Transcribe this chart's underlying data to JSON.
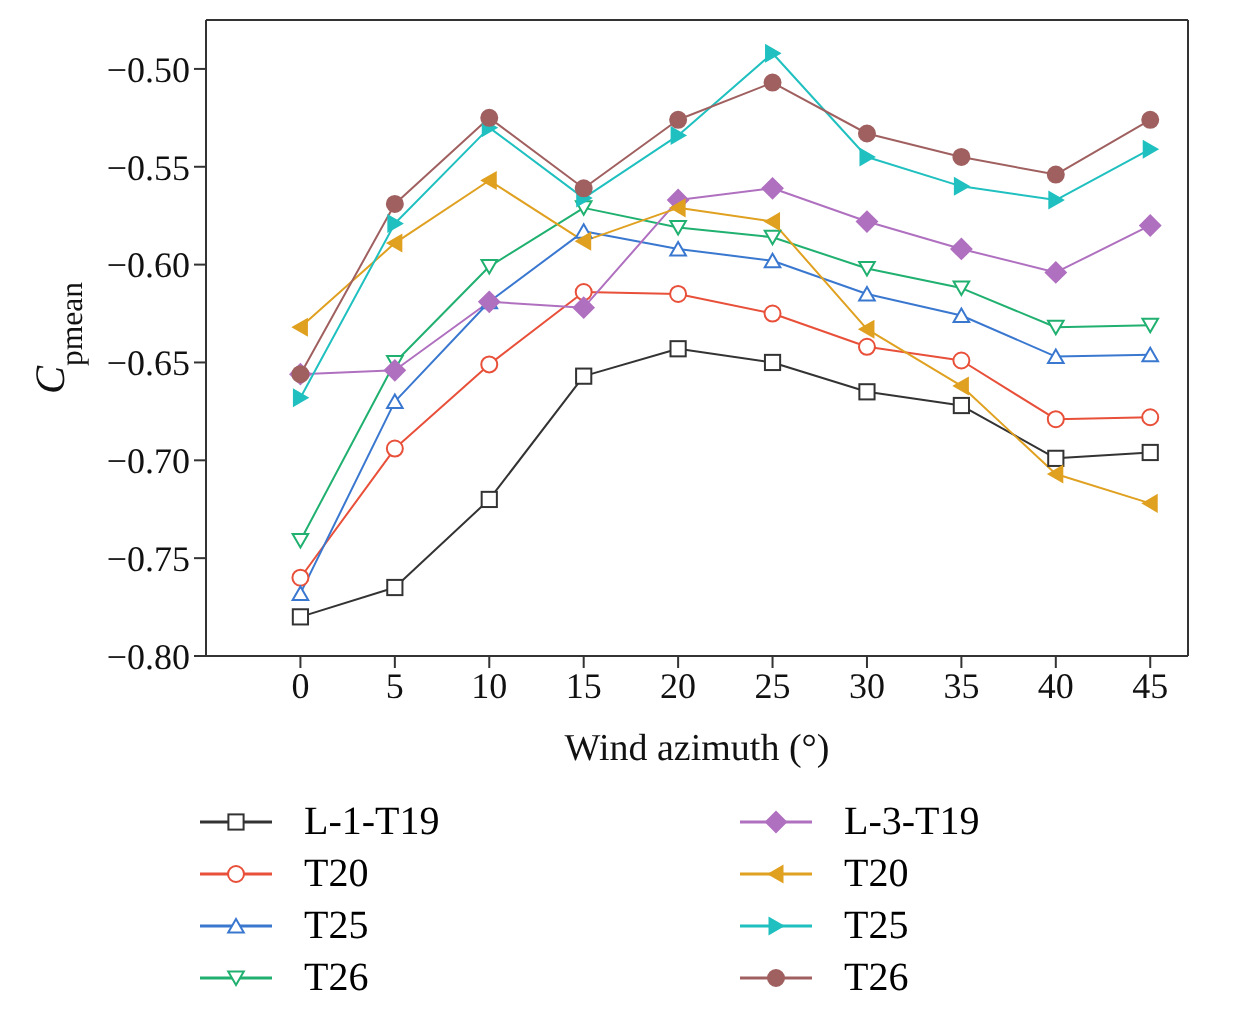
{
  "chart_data": {
    "type": "line",
    "xlabel": "Wind azimuth (°)",
    "ylabel": "C$_{pmean}$",
    "x": [
      0,
      5,
      10,
      15,
      20,
      25,
      30,
      35,
      40,
      45
    ],
    "xlim": [
      -5,
      47
    ],
    "xticks": [
      0,
      5,
      10,
      15,
      20,
      25,
      30,
      35,
      40,
      45
    ],
    "ylim": [
      -0.8,
      -0.475
    ],
    "yticks": [
      {
        "value": -0.8,
        "label": "−0.80"
      },
      {
        "value": -0.75,
        "label": "−0.75"
      },
      {
        "value": -0.7,
        "label": "−0.70"
      },
      {
        "value": -0.65,
        "label": "−0.65"
      },
      {
        "value": -0.6,
        "label": "−0.60"
      },
      {
        "value": -0.55,
        "label": "−0.55"
      },
      {
        "value": -0.5,
        "label": "−0.50"
      }
    ],
    "grid": false,
    "legend": "bottom",
    "line_style": "solid",
    "series": [
      {
        "name": "L-1-T19",
        "color": "#333333",
        "marker": "square",
        "values": [
          -0.78,
          -0.765,
          -0.72,
          -0.657,
          -0.643,
          -0.65,
          -0.665,
          -0.672,
          -0.699,
          -0.696
        ]
      },
      {
        "name": "T20",
        "color": "#e8503a",
        "marker": "circle",
        "values": [
          -0.76,
          -0.694,
          -0.651,
          -0.614,
          -0.615,
          -0.625,
          -0.642,
          -0.649,
          -0.679,
          -0.678
        ]
      },
      {
        "name": "T25",
        "color": "#3a78d0",
        "marker": "triangle",
        "values": [
          -0.768,
          -0.67,
          -0.619,
          -0.583,
          -0.592,
          -0.598,
          -0.615,
          -0.626,
          -0.647,
          -0.646
        ]
      },
      {
        "name": "T26",
        "color": "#20b070",
        "marker": "triangle-down",
        "values": [
          -0.741,
          -0.65,
          -0.601,
          -0.571,
          -0.581,
          -0.586,
          -0.602,
          -0.612,
          -0.632,
          -0.631
        ]
      },
      {
        "name": "L-3-T19",
        "color": "#b070c0",
        "marker": "diamond",
        "values": [
          -0.656,
          -0.654,
          -0.619,
          -0.622,
          -0.567,
          -0.561,
          -0.578,
          -0.592,
          -0.604,
          -0.58
        ]
      },
      {
        "name": "T20",
        "color": "#e0a020",
        "marker": "triangle-left",
        "values": [
          -0.632,
          -0.589,
          -0.557,
          -0.588,
          -0.571,
          -0.578,
          -0.633,
          -0.662,
          -0.707,
          -0.722
        ]
      },
      {
        "name": "T25",
        "color": "#20c0c0",
        "marker": "triangle-right",
        "values": [
          -0.668,
          -0.579,
          -0.53,
          -0.566,
          -0.534,
          -0.492,
          -0.545,
          -0.56,
          -0.567,
          -0.541
        ]
      },
      {
        "name": "T26",
        "color": "#a06060",
        "marker": "circle",
        "values": [
          -0.656,
          -0.569,
          -0.525,
          -0.561,
          -0.526,
          -0.507,
          -0.533,
          -0.545,
          -0.554,
          -0.526
        ]
      }
    ]
  }
}
